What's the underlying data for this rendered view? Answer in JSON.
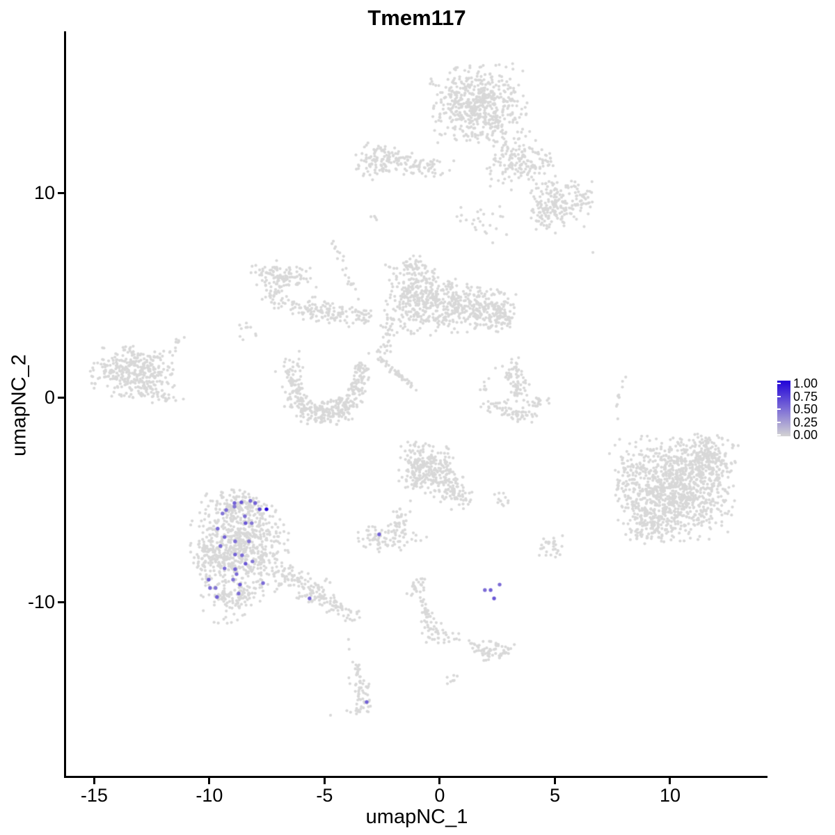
{
  "chart_data": {
    "type": "scatter",
    "title": "Tmem117",
    "xlabel": "umapNC_1",
    "ylabel": "umapNC_2",
    "xlim": [
      -16.22,
      14.23
    ],
    "ylim": [
      -18.47,
      17.92
    ],
    "xticks": [
      "-15",
      "-10",
      "-5",
      "0",
      "5",
      "10"
    ],
    "xtick_values": [
      -15,
      -10,
      -5,
      0,
      5,
      10
    ],
    "yticks": [
      "10",
      "0",
      "-10"
    ],
    "ytick_values": [
      10,
      0,
      -10
    ],
    "grid": false,
    "legend_position": "right",
    "color_low": "#D3D3D3",
    "color_high": "#2203D8",
    "gray_point_color": "#D8D8D8",
    "legend": {
      "ticks": [
        "1.00",
        "0.75",
        "0.50",
        "0.25",
        "0.00"
      ],
      "values": [
        1.0,
        0.75,
        0.5,
        0.25,
        0.0
      ]
    },
    "clusters": [
      [
        1.66,
        14.35,
        0.97,
        0.92,
        550
      ],
      [
        3.11,
        11.8,
        0.54,
        0.68,
        90
      ],
      [
        3.96,
        11.46,
        0.6,
        0.48,
        80
      ],
      [
        5.38,
        9.59,
        0.66,
        0.61,
        150
      ],
      [
        4.62,
        9.01,
        0.42,
        0.41,
        60
      ],
      [
        1.75,
        8.57,
        0.76,
        0.61,
        25
      ],
      [
        -2.63,
        11.63,
        0.48,
        0.44,
        90
      ],
      [
        -1.42,
        11.46,
        0.66,
        0.27,
        60
      ],
      [
        -0.3,
        11.22,
        0.42,
        0.2,
        25
      ],
      [
        -2.78,
        8.74,
        0.24,
        0.14,
        4
      ],
      [
        -7.46,
        6.09,
        0.42,
        0.31,
        50
      ],
      [
        -6.4,
        5.88,
        0.48,
        0.27,
        55
      ],
      [
        -7.01,
        5.03,
        0.33,
        0.31,
        40
      ],
      [
        -5.65,
        4.35,
        0.54,
        0.31,
        65
      ],
      [
        -4.35,
        4.08,
        0.48,
        0.24,
        45
      ],
      [
        -3.38,
        3.98,
        0.3,
        0.24,
        25
      ],
      [
        -8.52,
        3.2,
        0.3,
        0.27,
        10
      ],
      [
        -0.97,
        4.9,
        0.66,
        0.88,
        300
      ],
      [
        0.48,
        4.49,
        0.54,
        0.61,
        170
      ],
      [
        1.99,
        4.39,
        0.6,
        0.54,
        160
      ],
      [
        2.72,
        3.88,
        0.33,
        0.37,
        50
      ],
      [
        -2.18,
        3.54,
        0.18,
        0.48,
        22
      ],
      [
        -2.39,
        2.62,
        0.15,
        0.27,
        12
      ],
      [
        -1.21,
        6.46,
        0.27,
        0.24,
        25
      ],
      [
        -6.28,
        0.65,
        0.21,
        0.61,
        55
      ],
      [
        -6.04,
        -0.27,
        0.24,
        0.37,
        45
      ],
      [
        -5.2,
        -0.68,
        0.51,
        0.31,
        110
      ],
      [
        -4.17,
        -0.44,
        0.33,
        0.31,
        70
      ],
      [
        -3.63,
        0.54,
        0.24,
        0.54,
        60
      ],
      [
        -3.44,
        1.36,
        0.18,
        0.24,
        25
      ],
      [
        -6.4,
        1.63,
        0.21,
        0.17,
        8
      ],
      [
        -13.29,
        1.36,
        0.88,
        0.58,
        320
      ],
      [
        -12.39,
        0.2,
        0.6,
        0.24,
        50
      ],
      [
        3.17,
        1.29,
        0.24,
        0.34,
        35
      ],
      [
        3.44,
        0.54,
        0.24,
        0.34,
        35
      ],
      [
        2.42,
        -0.41,
        0.3,
        0.2,
        22
      ],
      [
        3.41,
        -0.85,
        0.42,
        0.2,
        40
      ],
      [
        4.23,
        -0.31,
        0.24,
        0.24,
        20
      ],
      [
        2.05,
        0.54,
        0.15,
        0.2,
        6
      ],
      [
        10.27,
        -4.42,
        1.21,
        1.22,
        1000
      ],
      [
        11.66,
        -2.93,
        0.6,
        0.58,
        140
      ],
      [
        8.28,
        -3.95,
        0.33,
        0.61,
        50
      ],
      [
        9.06,
        -6.29,
        0.48,
        0.44,
        90
      ],
      [
        4.83,
        -7.28,
        0.3,
        0.27,
        30
      ],
      [
        -0.6,
        -3.4,
        0.6,
        0.58,
        240
      ],
      [
        0.42,
        -4.35,
        0.33,
        0.37,
        60
      ],
      [
        0.94,
        -4.9,
        0.21,
        0.27,
        25
      ],
      [
        2.72,
        -5.0,
        0.24,
        0.17,
        12
      ],
      [
        -2.42,
        -6.8,
        0.66,
        0.31,
        80
      ],
      [
        -1.81,
        -6.05,
        0.21,
        0.31,
        18
      ],
      [
        -1.57,
        -5.71,
        0.15,
        0.17,
        8
      ],
      [
        -8.82,
        -5.31,
        0.63,
        0.41,
        140
      ],
      [
        -8.67,
        -7.35,
        1.0,
        1.09,
        650
      ],
      [
        -10.06,
        -7.86,
        0.27,
        0.61,
        50
      ],
      [
        -8.88,
        -9.73,
        0.69,
        0.37,
        90
      ],
      [
        -6.4,
        -8.78,
        0.36,
        0.27,
        45
      ],
      [
        -5.44,
        -9.49,
        0.42,
        0.31,
        55
      ],
      [
        -4.53,
        -10.1,
        0.33,
        0.24,
        35
      ],
      [
        -3.84,
        -10.61,
        0.21,
        0.17,
        15
      ],
      [
        -9.12,
        -10.78,
        0.42,
        0.14,
        10
      ],
      [
        -0.97,
        -9.29,
        0.24,
        0.24,
        25
      ],
      [
        -0.3,
        -11.43,
        0.27,
        0.31,
        30
      ],
      [
        0.33,
        -11.6,
        0.21,
        0.14,
        6
      ],
      [
        0.66,
        -11.73,
        0.18,
        0.1,
        5
      ],
      [
        2.15,
        -12.45,
        0.39,
        0.27,
        45
      ],
      [
        2.75,
        -12.24,
        0.24,
        0.17,
        12
      ],
      [
        1.36,
        -12.01,
        0.15,
        0.14,
        6
      ],
      [
        -3.6,
        -13.61,
        0.18,
        0.34,
        20
      ],
      [
        -3.32,
        -14.39,
        0.18,
        0.41,
        25
      ],
      [
        -3.38,
        -15.07,
        0.21,
        0.24,
        15
      ],
      [
        -3.75,
        -15.31,
        0.15,
        0.14,
        6
      ],
      [
        0.57,
        -13.88,
        0.18,
        0.17,
        8
      ]
    ],
    "chains": [
      [
        -2.63,
        1.94,
        -1.12,
        0.51,
        42,
        0.07
      ],
      [
        8.07,
        1.09,
        7.67,
        -0.44,
        9,
        0.04
      ],
      [
        -0.76,
        -9.8,
        -0.42,
        -11.16,
        28,
        0.1
      ],
      [
        -4.68,
        7.72,
        -3.75,
        5.24,
        20,
        0.1
      ],
      [
        -11.9,
        2.21,
        -11.18,
        2.89,
        10,
        0.08
      ]
    ],
    "singles": [
      [
        5.02,
        8.06
      ],
      [
        6.65,
        7.11
      ],
      [
        3.11,
        10.17
      ],
      [
        -3.53,
        11.39
      ],
      [
        -3.29,
        10.95
      ],
      [
        -3.53,
        4.83
      ],
      [
        -3.08,
        2.18
      ],
      [
        -2.54,
        1.77
      ],
      [
        -7.13,
        1.29
      ],
      [
        -6.83,
        0.54
      ],
      [
        -6.1,
        2.28
      ],
      [
        -11.09,
        2.96
      ],
      [
        2.42,
        1.46
      ],
      [
        1.93,
        0.78
      ],
      [
        7.73,
        -1.02
      ],
      [
        7.61,
        -2.31
      ],
      [
        7.37,
        -2.72
      ],
      [
        7.79,
        -4.93
      ],
      [
        8.7,
        -3.23
      ],
      [
        1.03,
        -5.41
      ],
      [
        -1.27,
        -5.03
      ],
      [
        -2.63,
        -7.52
      ],
      [
        -9.03,
        -4.49
      ],
      [
        -8.46,
        -4.59
      ],
      [
        -0.76,
        -11.5
      ],
      [
        -3.96,
        -11.8
      ],
      [
        -3.93,
        -12.28
      ],
      [
        -4.74,
        -15.51
      ],
      [
        -0.57,
        -6.8
      ],
      [
        -0.82,
        -6.97
      ]
    ],
    "expressing_cells": [
      [
        -8.91,
        -5.14,
        0.55
      ],
      [
        -9.27,
        -5.48,
        0.5
      ],
      [
        -9.43,
        -5.65,
        0.45
      ],
      [
        -8.61,
        -5.1,
        0.6
      ],
      [
        -8.22,
        -5.03,
        0.5
      ],
      [
        -8.01,
        -5.14,
        0.55
      ],
      [
        -7.82,
        -5.44,
        0.65
      ],
      [
        -8.91,
        -5.31,
        0.45
      ],
      [
        -8.46,
        -5.78,
        0.5
      ],
      [
        -8.43,
        -6.12,
        0.6
      ],
      [
        -8.16,
        -6.12,
        0.45
      ],
      [
        -9.64,
        -6.39,
        0.5
      ],
      [
        -9.34,
        -6.8,
        0.55
      ],
      [
        -8.88,
        -7.01,
        0.5
      ],
      [
        -8.28,
        -7.01,
        0.45
      ],
      [
        -9.52,
        -7.24,
        0.5
      ],
      [
        -8.88,
        -7.65,
        0.55
      ],
      [
        -8.58,
        -7.69,
        0.5
      ],
      [
        -8.43,
        -8.1,
        0.6
      ],
      [
        -8.13,
        -7.99,
        0.45
      ],
      [
        -9.34,
        -8.33,
        0.5
      ],
      [
        -8.88,
        -8.37,
        0.55
      ],
      [
        -8.82,
        -8.61,
        0.5
      ],
      [
        -8.97,
        -8.88,
        0.45
      ],
      [
        -10.03,
        -8.88,
        0.55
      ],
      [
        -9.97,
        -9.29,
        0.5
      ],
      [
        -9.73,
        -9.29,
        0.45
      ],
      [
        -8.67,
        -9.12,
        0.6
      ],
      [
        -8.73,
        -9.56,
        0.5
      ],
      [
        -9.67,
        -9.73,
        0.55
      ],
      [
        -7.67,
        -9.05,
        0.5
      ],
      [
        -5.65,
        -9.8,
        0.55
      ],
      [
        -7.52,
        -5.44,
        1.0
      ],
      [
        -2.63,
        -6.67,
        0.55
      ],
      [
        1.96,
        -9.39,
        0.5
      ],
      [
        2.21,
        -9.39,
        0.55
      ],
      [
        2.6,
        -9.12,
        0.5
      ],
      [
        2.36,
        -9.8,
        0.6
      ],
      [
        -3.17,
        -14.86,
        0.55
      ]
    ]
  }
}
